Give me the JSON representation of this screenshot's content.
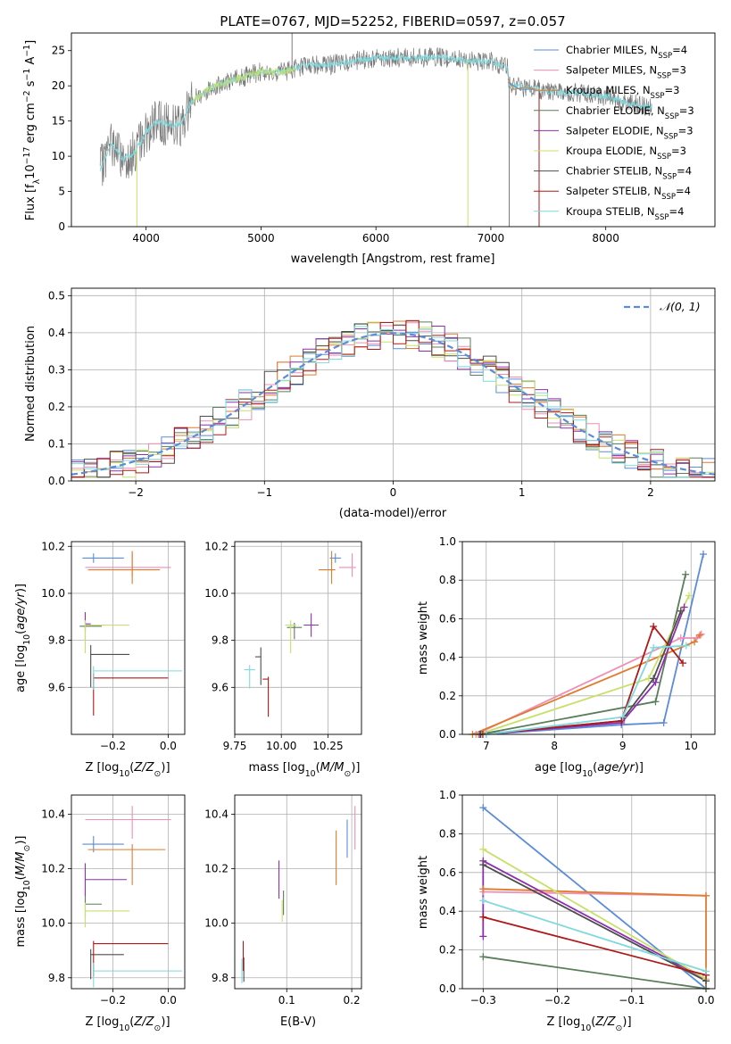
{
  "figure_title": "PLATE=0767, MJD=52252, FIBERID=0597, z=0.057",
  "colors": {
    "Chabrier MILES": "#5b8bd9",
    "Salpeter MILES": "#f08eb4",
    "Kroupa MILES": "#e07b2e",
    "Chabrier ELODIE": "#5a7d5a",
    "Salpeter ELODIE": "#8e2fb0",
    "Kroupa ELODIE": "#c8e06a",
    "Chabrier STELIB": "#4d4d4d",
    "Salpeter STELIB": "#b01818",
    "Kroupa STELIB": "#7fd9dd"
  },
  "legend_models": [
    {
      "base": "Chabrier MILES, N",
      "sub": "SSP",
      "tail": "=4"
    },
    {
      "base": "Salpeter MILES, N",
      "sub": "SSP",
      "tail": "=3"
    },
    {
      "base": "Kroupa MILES, N",
      "sub": "SSP",
      "tail": "=3"
    },
    {
      "base": "Chabrier ELODIE, N",
      "sub": "SSP",
      "tail": "=3"
    },
    {
      "base": "Salpeter ELODIE, N",
      "sub": "SSP",
      "tail": "=3"
    },
    {
      "base": "Kroupa ELODIE, N",
      "sub": "SSP",
      "tail": "=3"
    },
    {
      "base": "Chabrier STELIB, N",
      "sub": "SSP",
      "tail": "=4"
    },
    {
      "base": "Salpeter STELIB, N",
      "sub": "SSP",
      "tail": "=4"
    },
    {
      "base": "Kroupa STELIB, N",
      "sub": "SSP",
      "tail": "=4"
    }
  ],
  "chart_data": [
    {
      "id": "spectrum",
      "type": "line",
      "xlabel": "wavelength [Angstrom, rest frame]",
      "ylabel": "Flux [f_λ 10^-17 erg cm^-2 s^-1 A^-1]",
      "xlim": [
        3350,
        8950
      ],
      "ylim": [
        0,
        27.5
      ],
      "xticks": [
        4000,
        5000,
        6000,
        7000,
        8000
      ],
      "yticks": [
        0,
        5,
        10,
        15,
        20,
        25
      ],
      "continuum_anchors": [
        [
          3600,
          8
        ],
        [
          3700,
          12
        ],
        [
          3800,
          9.5
        ],
        [
          3900,
          10.5
        ],
        [
          4000,
          13.5
        ],
        [
          4100,
          15
        ],
        [
          4200,
          14.5
        ],
        [
          4300,
          14.5
        ],
        [
          4400,
          18
        ],
        [
          4500,
          19
        ],
        [
          4600,
          20
        ],
        [
          4800,
          21
        ],
        [
          5000,
          22
        ],
        [
          5200,
          22
        ],
        [
          5400,
          23
        ],
        [
          5600,
          23
        ],
        [
          5800,
          23.5
        ],
        [
          6000,
          24
        ],
        [
          6200,
          24
        ],
        [
          6400,
          24
        ],
        [
          6600,
          24
        ],
        [
          6800,
          23.5
        ],
        [
          7000,
          23.5
        ],
        [
          7150,
          22.5
        ],
        [
          7160,
          20
        ],
        [
          7400,
          19.5
        ],
        [
          7600,
          19
        ],
        [
          7800,
          19
        ],
        [
          8000,
          18.5
        ],
        [
          8200,
          17.5
        ],
        [
          8400,
          17
        ]
      ],
      "model_tails": [
        {
          "series": "Kroupa MILES",
          "points": [
            [
              7150,
              21
            ],
            [
              7200,
              19.5
            ],
            [
              7300,
              19.8
            ],
            [
              7400,
              19.5
            ]
          ]
        },
        {
          "series": "Chabrier MILES",
          "points": [
            [
              7150,
              20.5
            ],
            [
              7250,
              19.5
            ],
            [
              7380,
              19.5
            ]
          ]
        }
      ],
      "spikes": [
        [
          3920,
          0
        ],
        [
          5270,
          27.5
        ],
        [
          6800,
          0
        ],
        [
          7160,
          0
        ],
        [
          7420,
          0
        ]
      ],
      "legend_position": "upper right"
    },
    {
      "id": "residuals",
      "type": "step",
      "xlabel": "(data-model)/error",
      "ylabel": "Normed distribution",
      "xlim": [
        -2.5,
        2.5
      ],
      "ylim": [
        0,
        0.52
      ],
      "xticks": [
        -2,
        -1,
        0,
        1,
        2
      ],
      "yticks": [
        0.0,
        0.1,
        0.2,
        0.3,
        0.4,
        0.5
      ],
      "bin_width": 0.1,
      "gaussian_label": "𝒩(0, 1)",
      "gaussian_color": "#5b8bd9",
      "legend_position": "upper right"
    },
    {
      "id": "age_vs_Z",
      "type": "errorbar",
      "xlabel": "Z [log10(Z/Z⊙)]",
      "ylabel": "age [log10(age/yr)]",
      "xlim": [
        -0.35,
        0.06
      ],
      "ylim": [
        9.4,
        10.22
      ],
      "xticks": [
        -0.2,
        0.0
      ],
      "yticks": [
        9.6,
        9.8,
        10.0,
        10.2
      ],
      "points": [
        {
          "series": "Chabrier MILES",
          "x": -0.27,
          "y": 10.15,
          "xerr": [
            0.04,
            0.11
          ],
          "yerr": [
            0.02,
            0.02
          ]
        },
        {
          "series": "Salpeter MILES",
          "x": -0.13,
          "y": 10.11,
          "xerr": [
            0.17,
            0.14
          ],
          "yerr": [
            0.04,
            0.06
          ]
        },
        {
          "series": "Kroupa MILES",
          "x": -0.13,
          "y": 10.1,
          "xerr": [
            0.16,
            0.1
          ],
          "yerr": [
            0.06,
            0.08
          ]
        },
        {
          "series": "Chabrier ELODIE",
          "x": -0.3,
          "y": 9.86,
          "xerr": [
            0.02,
            0.06
          ],
          "yerr": [
            0.06,
            0.02
          ]
        },
        {
          "series": "Salpeter ELODIE",
          "x": -0.3,
          "y": 9.87,
          "xerr": [
            0.0,
            0.02
          ],
          "yerr": [
            0.03,
            0.05
          ]
        },
        {
          "series": "Kroupa ELODIE",
          "x": -0.3,
          "y": 9.865,
          "xerr": [
            0.0,
            0.16
          ],
          "yerr": [
            0.12,
            0.02
          ]
        },
        {
          "series": "Chabrier STELIB",
          "x": -0.28,
          "y": 9.74,
          "xerr": [
            0.0,
            0.14
          ],
          "yerr": [
            0.14,
            0.04
          ]
        },
        {
          "series": "Salpeter STELIB",
          "x": -0.27,
          "y": 9.64,
          "xerr": [
            0.0,
            0.27
          ],
          "yerr": [
            0.16,
            0.02
          ]
        },
        {
          "series": "Kroupa STELIB",
          "x": -0.27,
          "y": 9.67,
          "xerr": [
            0.0,
            0.32
          ],
          "yerr": [
            0.08,
            0.02
          ]
        }
      ]
    },
    {
      "id": "age_vs_mass",
      "type": "errorbar",
      "xlabel": "mass [log10(M/M⊙)]",
      "ylabel": "",
      "xlim": [
        9.75,
        10.43
      ],
      "ylim": [
        9.4,
        10.22
      ],
      "xticks": [
        9.75,
        10.0,
        10.25
      ],
      "yticks": [
        9.6,
        9.8,
        10.0,
        10.2
      ],
      "points": [
        {
          "series": "Chabrier MILES",
          "x": 10.29,
          "y": 10.15,
          "xerr": [
            0.03,
            0.03
          ],
          "yerr": [
            0.02,
            0.02
          ]
        },
        {
          "series": "Salpeter MILES",
          "x": 10.38,
          "y": 10.11,
          "xerr": [
            0.07,
            0.02
          ],
          "yerr": [
            0.04,
            0.06
          ]
        },
        {
          "series": "Kroupa MILES",
          "x": 10.27,
          "y": 10.1,
          "xerr": [
            0.07,
            0.02
          ],
          "yerr": [
            0.06,
            0.08
          ]
        },
        {
          "series": "Chabrier ELODIE",
          "x": 10.07,
          "y": 9.855,
          "xerr": [
            0.04,
            0.04
          ],
          "yerr": [
            0.05,
            0.02
          ]
        },
        {
          "series": "Salpeter ELODIE",
          "x": 10.16,
          "y": 9.865,
          "xerr": [
            0.04,
            0.04
          ],
          "yerr": [
            0.05,
            0.05
          ]
        },
        {
          "series": "Kroupa ELODIE",
          "x": 10.05,
          "y": 9.865,
          "xerr": [
            0.03,
            0.03
          ],
          "yerr": [
            0.12,
            0.02
          ]
        },
        {
          "series": "Chabrier STELIB",
          "x": 9.89,
          "y": 9.73,
          "xerr": [
            0.03,
            0.0
          ],
          "yerr": [
            0.12,
            0.04
          ]
        },
        {
          "series": "Salpeter STELIB",
          "x": 9.93,
          "y": 9.635,
          "xerr": [
            0.03,
            0.0
          ],
          "yerr": [
            0.16,
            0.01
          ]
        },
        {
          "series": "Kroupa STELIB",
          "x": 9.83,
          "y": 9.675,
          "xerr": [
            0.03,
            0.03
          ],
          "yerr": [
            0.08,
            0.02
          ]
        }
      ]
    },
    {
      "id": "massweight_vs_age",
      "type": "line",
      "xlabel": "age [log10(age/yr)]",
      "ylabel": "mass weight",
      "xlim": [
        6.65,
        10.35
      ],
      "ylim": [
        0,
        1.0
      ],
      "xticks": [
        7,
        8,
        9,
        10
      ],
      "yticks": [
        0.0,
        0.2,
        0.4,
        0.6,
        0.8,
        1.0
      ],
      "series": [
        {
          "name": "Chabrier MILES",
          "x": [
            7.0,
            8.98,
            9.6,
            10.18
          ],
          "y": [
            0.0,
            0.05,
            0.06,
            0.935
          ]
        },
        {
          "name": "Salpeter MILES",
          "x": [
            6.85,
            9.85,
            10.08,
            10.15
          ],
          "y": [
            0.0,
            0.5,
            0.5,
            0.52
          ]
        },
        {
          "name": "Kroupa MILES",
          "x": [
            6.8,
            10.05,
            10.13
          ],
          "y": [
            0.0,
            0.48,
            0.515
          ]
        },
        {
          "name": "Chabrier ELODIE",
          "x": [
            6.9,
            9.48,
            9.92
          ],
          "y": [
            0.0,
            0.17,
            0.83
          ]
        },
        {
          "name": "Salpeter ELODIE",
          "x": [
            6.9,
            8.98,
            9.48,
            9.9
          ],
          "y": [
            0.0,
            0.06,
            0.27,
            0.66
          ]
        },
        {
          "name": "Kroupa ELODIE",
          "x": [
            6.88,
            9.38,
            9.97
          ],
          "y": [
            0.0,
            0.29,
            0.72
          ]
        },
        {
          "name": "Chabrier STELIB",
          "x": [
            6.92,
            8.98,
            9.45,
            9.85
          ],
          "y": [
            0.0,
            0.07,
            0.29,
            0.64
          ]
        },
        {
          "name": "Salpeter STELIB",
          "x": [
            6.95,
            8.98,
            9.45,
            9.88
          ],
          "y": [
            0.0,
            0.07,
            0.56,
            0.37
          ]
        },
        {
          "name": "Kroupa STELIB",
          "x": [
            7.0,
            9.0,
            9.45,
            9.93
          ],
          "y": [
            0.0,
            0.09,
            0.45,
            0.46
          ]
        }
      ]
    },
    {
      "id": "mass_vs_Z",
      "type": "errorbar",
      "xlabel": "Z [log10(Z/Z⊙)]",
      "ylabel": "mass [log10(M/M⊙)]",
      "xlim": [
        -0.35,
        0.06
      ],
      "ylim": [
        9.76,
        10.47
      ],
      "xticks": [
        -0.2,
        0.0
      ],
      "yticks": [
        9.8,
        10.0,
        10.2,
        10.4
      ],
      "points": [
        {
          "series": "Chabrier MILES",
          "x": -0.27,
          "y": 10.29,
          "xerr": [
            0.04,
            0.11
          ],
          "yerr": [
            0.03,
            0.03
          ]
        },
        {
          "series": "Salpeter MILES",
          "x": -0.13,
          "y": 10.38,
          "xerr": [
            0.17,
            0.14
          ],
          "yerr": [
            0.07,
            0.05
          ]
        },
        {
          "series": "Kroupa MILES",
          "x": -0.13,
          "y": 10.27,
          "xerr": [
            0.16,
            0.12
          ],
          "yerr": [
            0.13,
            0.02
          ]
        },
        {
          "series": "Chabrier ELODIE",
          "x": -0.3,
          "y": 10.07,
          "xerr": [
            0.0,
            0.06
          ],
          "yerr": [
            0.05,
            0.04
          ]
        },
        {
          "series": "Salpeter ELODIE",
          "x": -0.3,
          "y": 10.16,
          "xerr": [
            0.0,
            0.15
          ],
          "yerr": [
            0.06,
            0.06
          ]
        },
        {
          "series": "Kroupa ELODIE",
          "x": -0.3,
          "y": 10.045,
          "xerr": [
            0.0,
            0.16
          ],
          "yerr": [
            0.06,
            0.03
          ]
        },
        {
          "series": "Chabrier STELIB",
          "x": -0.28,
          "y": 9.885,
          "xerr": [
            0.0,
            0.12
          ],
          "yerr": [
            0.09,
            0.02
          ]
        },
        {
          "series": "Salpeter STELIB",
          "x": -0.27,
          "y": 9.925,
          "xerr": [
            0.0,
            0.27
          ],
          "yerr": [
            0.12,
            0.01
          ]
        },
        {
          "series": "Kroupa STELIB",
          "x": -0.27,
          "y": 9.825,
          "xerr": [
            0.0,
            0.32
          ],
          "yerr": [
            0.06,
            0.03
          ]
        }
      ]
    },
    {
      "id": "mass_vs_ebv",
      "type": "errorbar",
      "xlabel": "E(B-V)",
      "ylabel": "",
      "xlim": [
        0.02,
        0.215
      ],
      "ylim": [
        9.76,
        10.47
      ],
      "xticks": [
        0.1,
        0.2
      ],
      "yticks": [
        9.8,
        10.0,
        10.2,
        10.4
      ],
      "points": [
        {
          "series": "Chabrier MILES",
          "x": 0.193,
          "y": 10.29,
          "xerr": [
            0,
            0
          ],
          "yerr": [
            0.05,
            0.09
          ]
        },
        {
          "series": "Salpeter MILES",
          "x": 0.205,
          "y": 10.38,
          "xerr": [
            0,
            0
          ],
          "yerr": [
            0.11,
            0.05
          ]
        },
        {
          "series": "Kroupa MILES",
          "x": 0.176,
          "y": 10.27,
          "xerr": [
            0,
            0
          ],
          "yerr": [
            0.13,
            0.07
          ]
        },
        {
          "series": "Chabrier ELODIE",
          "x": 0.095,
          "y": 10.07,
          "xerr": [
            0,
            0
          ],
          "yerr": [
            0.04,
            0.05
          ]
        },
        {
          "series": "Salpeter ELODIE",
          "x": 0.088,
          "y": 10.16,
          "xerr": [
            0,
            0
          ],
          "yerr": [
            0.07,
            0.07
          ]
        },
        {
          "series": "Kroupa ELODIE",
          "x": 0.093,
          "y": 10.045,
          "xerr": [
            0,
            0
          ],
          "yerr": [
            0.04,
            0.04
          ]
        },
        {
          "series": "Chabrier STELIB",
          "x": 0.034,
          "y": 9.835,
          "xerr": [
            0,
            0
          ],
          "yerr": [
            0.05,
            0.04
          ]
        },
        {
          "series": "Salpeter STELIB",
          "x": 0.033,
          "y": 9.875,
          "xerr": [
            0,
            0
          ],
          "yerr": [
            0.05,
            0.06
          ]
        },
        {
          "series": "Kroupa STELIB",
          "x": 0.031,
          "y": 9.82,
          "xerr": [
            0,
            0
          ],
          "yerr": [
            0.04,
            0.05
          ]
        }
      ]
    },
    {
      "id": "massweight_vs_Z",
      "type": "line",
      "xlabel": "Z [log10(Z/Z⊙)]",
      "ylabel": "mass weight",
      "xlim": [
        -0.328,
        0.012
      ],
      "ylim": [
        0,
        1.0
      ],
      "xticks": [
        -0.3,
        -0.2,
        -0.1,
        0.0
      ],
      "yticks": [
        0.0,
        0.2,
        0.4,
        0.6,
        0.8,
        1.0
      ],
      "series": [
        {
          "name": "Chabrier MILES",
          "x": [
            -0.3,
            0.0
          ],
          "y": [
            0.935,
            0.0
          ]
        },
        {
          "name": "Salpeter MILES",
          "x": [
            -0.3,
            0.0
          ],
          "y": [
            0.5,
            0.48
          ]
        },
        {
          "name": "Kroupa MILES",
          "x": [
            -0.3,
            0.0,
            0.0
          ],
          "y": [
            0.515,
            0.48,
            0.0
          ]
        },
        {
          "name": "Chabrier ELODIE",
          "x": [
            -0.3,
            0.0
          ],
          "y": [
            0.165,
            0.0
          ]
        },
        {
          "name": "Salpeter ELODIE",
          "x": [
            -0.3,
            -0.3,
            0.0
          ],
          "y": [
            0.27,
            0.66,
            0.05
          ]
        },
        {
          "name": "Kroupa ELODIE",
          "x": [
            -0.3,
            0.0
          ],
          "y": [
            0.72,
            0.05
          ]
        },
        {
          "name": "Chabrier STELIB",
          "x": [
            -0.3,
            0.0
          ],
          "y": [
            0.64,
            0.04
          ]
        },
        {
          "name": "Salpeter STELIB",
          "x": [
            -0.3,
            0.0
          ],
          "y": [
            0.37,
            0.07
          ]
        },
        {
          "name": "Kroupa STELIB",
          "x": [
            -0.3,
            0.0
          ],
          "y": [
            0.455,
            0.09
          ]
        }
      ]
    }
  ]
}
